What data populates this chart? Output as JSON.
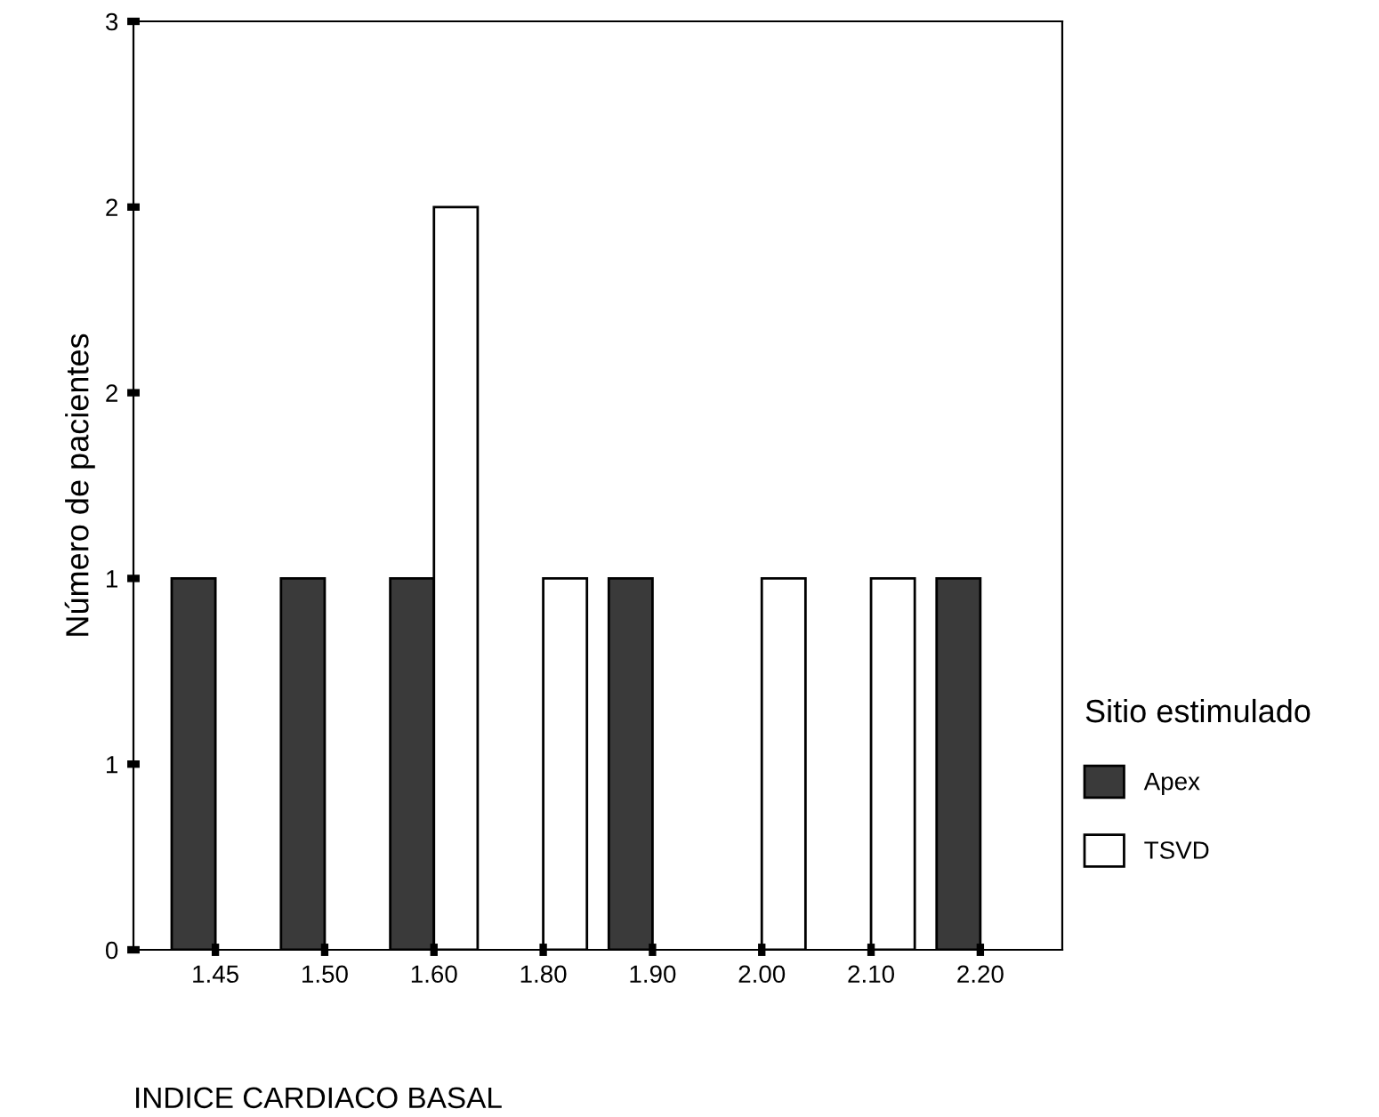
{
  "chart_data": {
    "type": "bar",
    "xlabel": "INDICE CARDIACO BASAL",
    "ylabel": "Número de pacientes",
    "legend_title": "Sitio estimulado",
    "categories": [
      "1.45",
      "1.50",
      "1.60",
      "1.80",
      "1.90",
      "2.00",
      "2.10",
      "2.20"
    ],
    "series": [
      {
        "name": "Apex",
        "color": "#3a3a3a",
        "values": [
          1,
          1,
          1,
          null,
          1,
          null,
          null,
          1
        ]
      },
      {
        "name": "TSVD",
        "color": "#ffffff",
        "values": [
          null,
          null,
          2,
          1,
          null,
          1,
          1,
          null
        ]
      }
    ],
    "ylim": [
      0,
      2.5
    ],
    "yticks": [
      {
        "value": 0,
        "label": "0"
      },
      {
        "value": 0.5,
        "label": "1"
      },
      {
        "value": 1,
        "label": "1"
      },
      {
        "value": 1.5,
        "label": "2"
      },
      {
        "value": 2,
        "label": "2"
      },
      {
        "value": 2.5,
        "label": "3"
      }
    ],
    "grid": false,
    "legend": "right"
  }
}
